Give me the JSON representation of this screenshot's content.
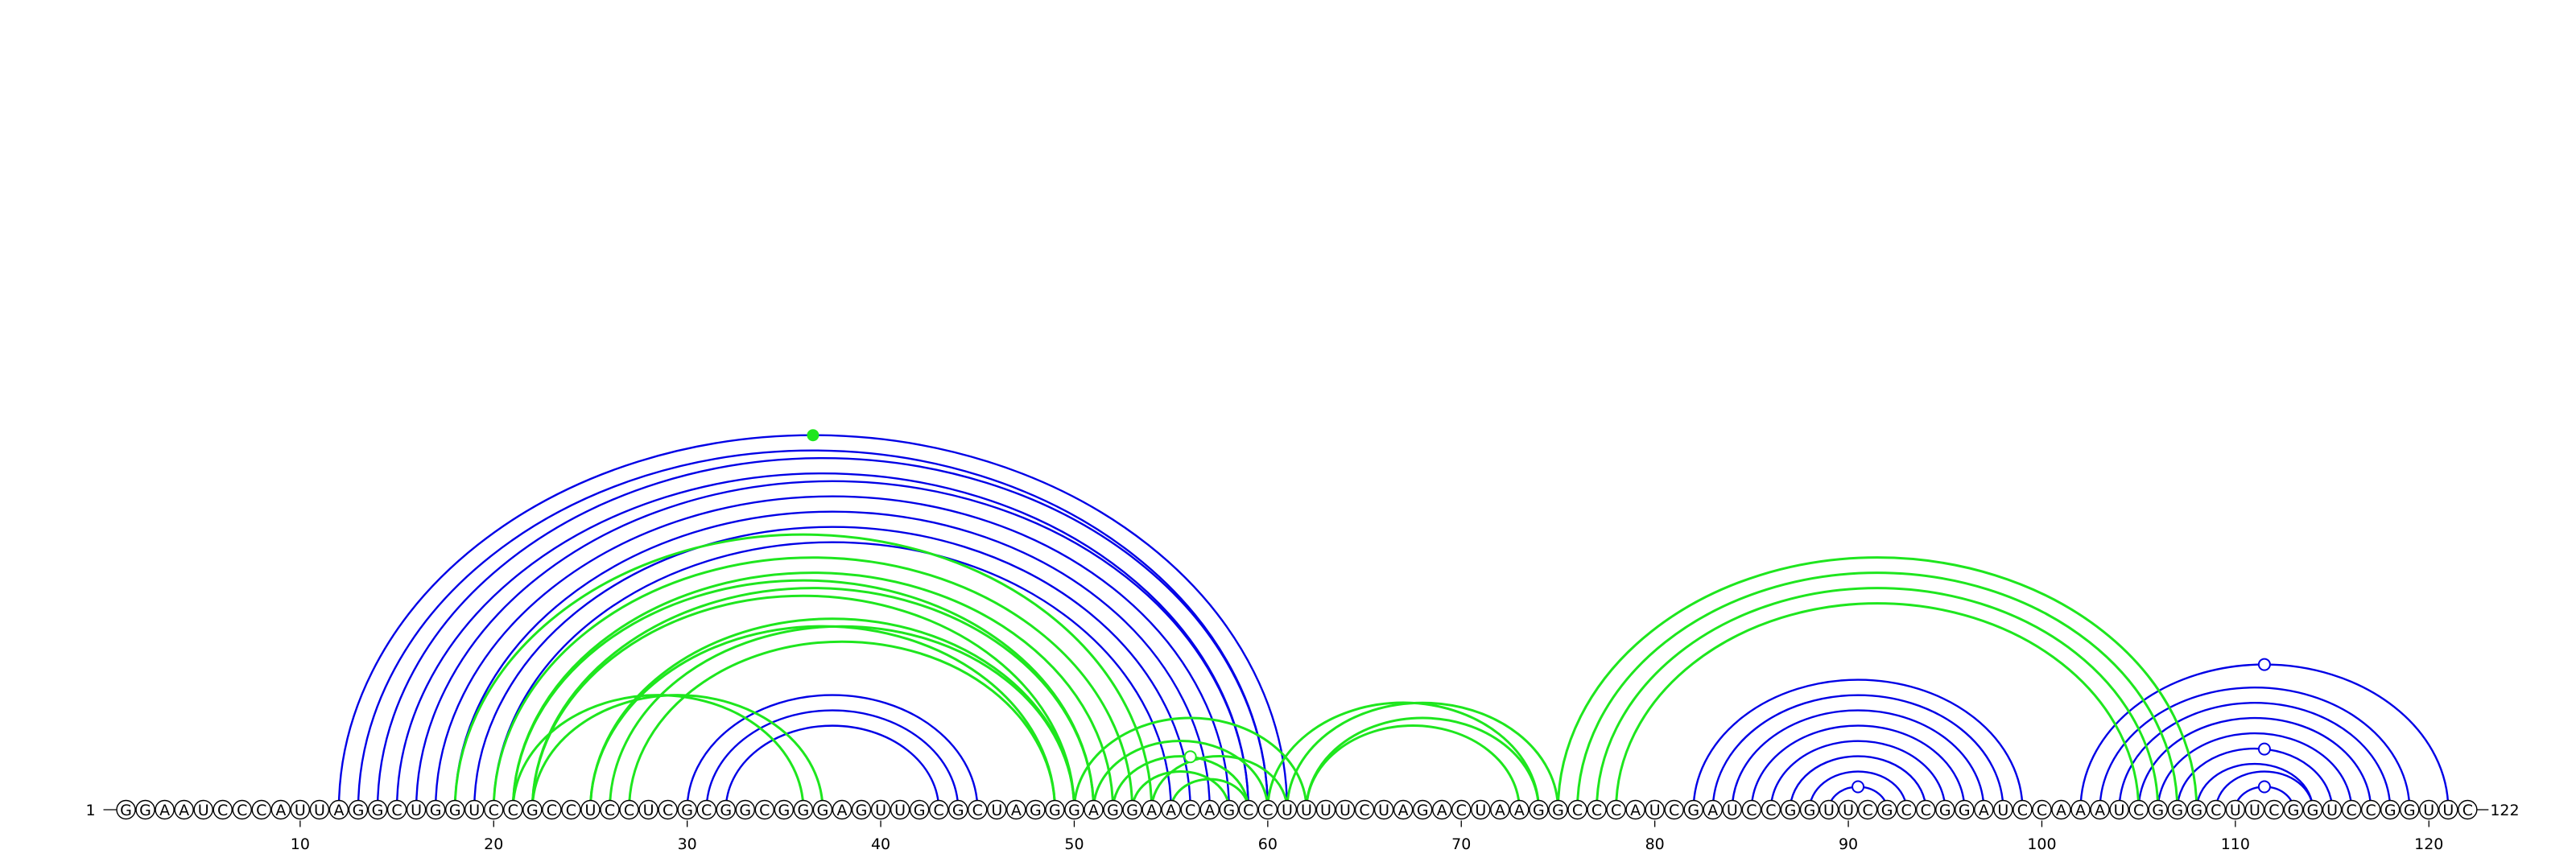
{
  "sequence": "GGAAUCCCAUUAGGCUGGUCCGCCUCCUCGCGGCGGGAGUUGCGCUAGGGAGGAACAGCCUUUUCUAGACUAAGGCCCAUCGAUCCGGUUCGCCGGAUCCAAAUCGGGCUUCGGUCCGGUUC",
  "start_label": "1",
  "end_label": "122",
  "ticks": [
    10,
    20,
    30,
    40,
    50,
    60,
    70,
    80,
    90,
    100,
    110,
    120
  ],
  "colors": {
    "blue": "#0000e6",
    "green": "#1ee61e"
  },
  "blue_arcs": [
    [
      12,
      61
    ],
    [
      13,
      60
    ],
    [
      14,
      60
    ],
    [
      15,
      59
    ],
    [
      16,
      59
    ],
    [
      17,
      58
    ],
    [
      18,
      57
    ],
    [
      19,
      56
    ],
    [
      20,
      55
    ],
    [
      30,
      45
    ],
    [
      31,
      44
    ],
    [
      32,
      43
    ],
    [
      82,
      99
    ],
    [
      83,
      98
    ],
    [
      84,
      97
    ],
    [
      85,
      96
    ],
    [
      86,
      95
    ],
    [
      87,
      94
    ],
    [
      88,
      93
    ],
    [
      89,
      92
    ],
    [
      102,
      121
    ],
    [
      103,
      119
    ],
    [
      104,
      118
    ],
    [
      105,
      117
    ],
    [
      106,
      116
    ],
    [
      107,
      115
    ],
    [
      108,
      114
    ],
    [
      109,
      114
    ],
    [
      110,
      113
    ]
  ],
  "green_arcs": [
    [
      18,
      54
    ],
    [
      20,
      53
    ],
    [
      21,
      51
    ],
    [
      21,
      52
    ],
    [
      22,
      50
    ],
    [
      22,
      51
    ],
    [
      25,
      49
    ],
    [
      25,
      50
    ],
    [
      21,
      36
    ],
    [
      22,
      37
    ],
    [
      26,
      50
    ],
    [
      27,
      49
    ],
    [
      50,
      62
    ],
    [
      51,
      60
    ],
    [
      52,
      59
    ],
    [
      53,
      58
    ],
    [
      54,
      61
    ],
    [
      55,
      59
    ],
    [
      60,
      74
    ],
    [
      61,
      75
    ],
    [
      62,
      73
    ],
    [
      62,
      74
    ],
    [
      75,
      108
    ],
    [
      76,
      107
    ],
    [
      77,
      106
    ],
    [
      78,
      105
    ]
  ],
  "markers": [
    {
      "pos": 36.5,
      "arc": [
        12,
        61
      ],
      "style": "filled",
      "color": "green"
    },
    {
      "pos": 56,
      "arc": [
        52,
        59
      ],
      "style": "open",
      "color": "green"
    },
    {
      "pos": 90.5,
      "arc": [
        89,
        92
      ],
      "style": "open",
      "color": "blue"
    },
    {
      "pos": 111.5,
      "arc": [
        102,
        121
      ],
      "style": "open",
      "color": "blue"
    },
    {
      "pos": 111.5,
      "arc": [
        107,
        115
      ],
      "style": "open",
      "color": "blue"
    },
    {
      "pos": 111.5,
      "arc": [
        110,
        113
      ],
      "style": "open",
      "color": "blue"
    }
  ]
}
